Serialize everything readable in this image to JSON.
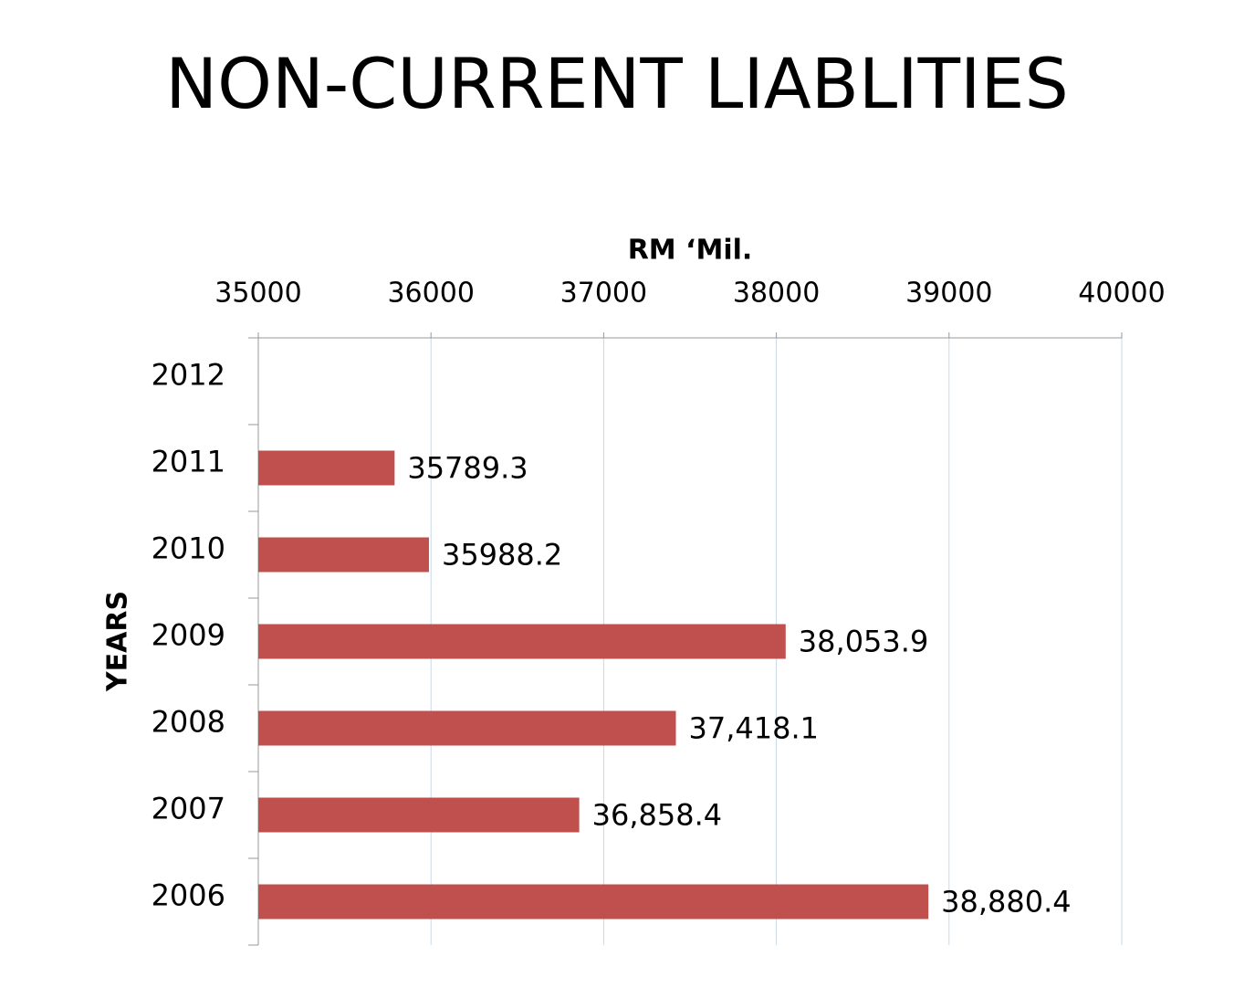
{
  "chart_data": {
    "type": "hbar",
    "title": "NON-CURRENT LIABLITIES",
    "x_label": "RM ‘Mil.",
    "y_label": "YEARS",
    "categories": [
      "2012",
      "2011",
      "2010",
      "2009",
      "2008",
      "2007",
      "2006"
    ],
    "values": [
      null,
      35789.3,
      35988.2,
      38053.9,
      37418.1,
      36858.4,
      38880.4
    ],
    "value_labels": [
      null,
      "35789.3",
      "35988.2",
      "38,053.9",
      "37,418.1",
      "36,858.4",
      "38,880.4"
    ],
    "color": "#c0504d",
    "xlim": [
      35000,
      40000
    ],
    "xticks": [
      35000,
      36000,
      37000,
      38000,
      39000,
      40000
    ],
    "grid": true
  }
}
